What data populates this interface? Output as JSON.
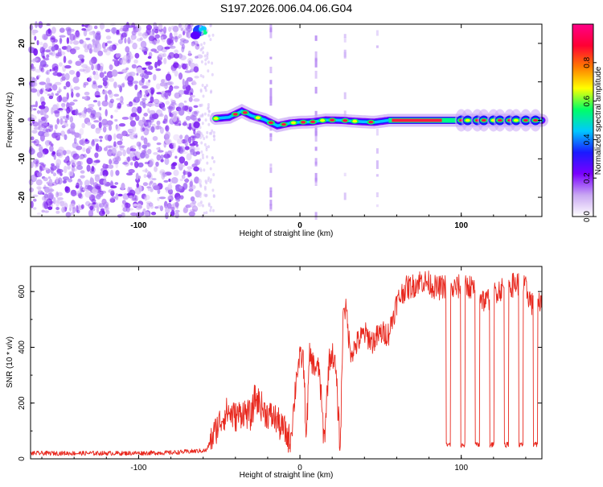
{
  "title": "S197.2026.006.04.06.G04",
  "chart_data": [
    {
      "type": "heatmap",
      "xlabel": "Height of straight line (km)",
      "ylabel": "Frequency (Hz)",
      "xlim": [
        -167,
        150
      ],
      "ylim": [
        -25,
        25
      ],
      "xticks": [
        -100,
        0,
        100
      ],
      "yticks": [
        -20,
        -10,
        0,
        10,
        20
      ],
      "colorbar": {
        "label": "Normalized spectral amplitude",
        "range": [
          0,
          1
        ],
        "ticks": [
          "0.0",
          "0.2",
          "0.4",
          "0.6",
          "0.8"
        ],
        "colors": [
          "#ffffff",
          "#c9a8f2",
          "#7a00ff",
          "#1a1aff",
          "#00c8ff",
          "#00ff66",
          "#ffff00",
          "#ff7a00",
          "#ff0033",
          "#ff0088"
        ]
      },
      "noise_region": [
        -167,
        -62
      ],
      "track": [
        [
          -52,
          0.5
        ],
        [
          -44,
          0.8
        ],
        [
          -36,
          2.4
        ],
        [
          -30,
          1.2
        ],
        [
          -22,
          0.2
        ],
        [
          -14,
          -1.4
        ],
        [
          -6,
          -0.7
        ],
        [
          0,
          -0.5
        ],
        [
          8,
          -0.4
        ],
        [
          16,
          0.1
        ],
        [
          26,
          0.0
        ],
        [
          36,
          -0.3
        ],
        [
          46,
          -0.5
        ],
        [
          55,
          0.0
        ],
        [
          150,
          0.0
        ]
      ],
      "gaps": [
        -18,
        10,
        28,
        48
      ]
    },
    {
      "type": "line",
      "xlabel": "Height of straight line (km)",
      "ylabel": "SNR (10 * v/v)",
      "xlim": [
        -167,
        150
      ],
      "ylim": [
        0,
        690
      ],
      "xticks": [
        -100,
        0,
        100
      ],
      "yticks": [
        0,
        200,
        400,
        600
      ],
      "series": [
        {
          "name": "SNR",
          "color": "#e8281e",
          "x": [
            -167,
            -140,
            -110,
            -80,
            -58,
            -54,
            -50,
            -45,
            -40,
            -35,
            -30,
            -28,
            -25,
            -22,
            -20,
            -17,
            -14,
            -12,
            -10,
            -8,
            -6,
            -4,
            -2,
            0,
            2,
            4,
            6,
            9,
            12,
            15,
            18,
            20,
            22,
            25,
            27,
            29,
            31,
            33,
            36,
            40,
            45,
            50,
            55,
            60,
            65,
            70,
            75,
            80,
            85,
            90,
            93,
            95,
            100,
            105,
            110,
            115,
            120,
            125,
            130,
            135,
            140,
            145,
            150
          ],
          "y": [
            20,
            20,
            20,
            22,
            30,
            80,
            130,
            170,
            150,
            170,
            150,
            220,
            200,
            170,
            160,
            150,
            140,
            110,
            110,
            80,
            70,
            170,
            310,
            360,
            360,
            80,
            370,
            330,
            320,
            60,
            350,
            380,
            330,
            40,
            560,
            520,
            390,
            390,
            420,
            450,
            420,
            450,
            450,
            560,
            610,
            620,
            640,
            630,
            610,
            620,
            590,
            610,
            620,
            620,
            600,
            560,
            600,
            610,
            620,
            630,
            610,
            540,
            580
          ],
          "dropouts": [
            92,
            101,
            110,
            119,
            128,
            137,
            146
          ]
        }
      ]
    }
  ]
}
